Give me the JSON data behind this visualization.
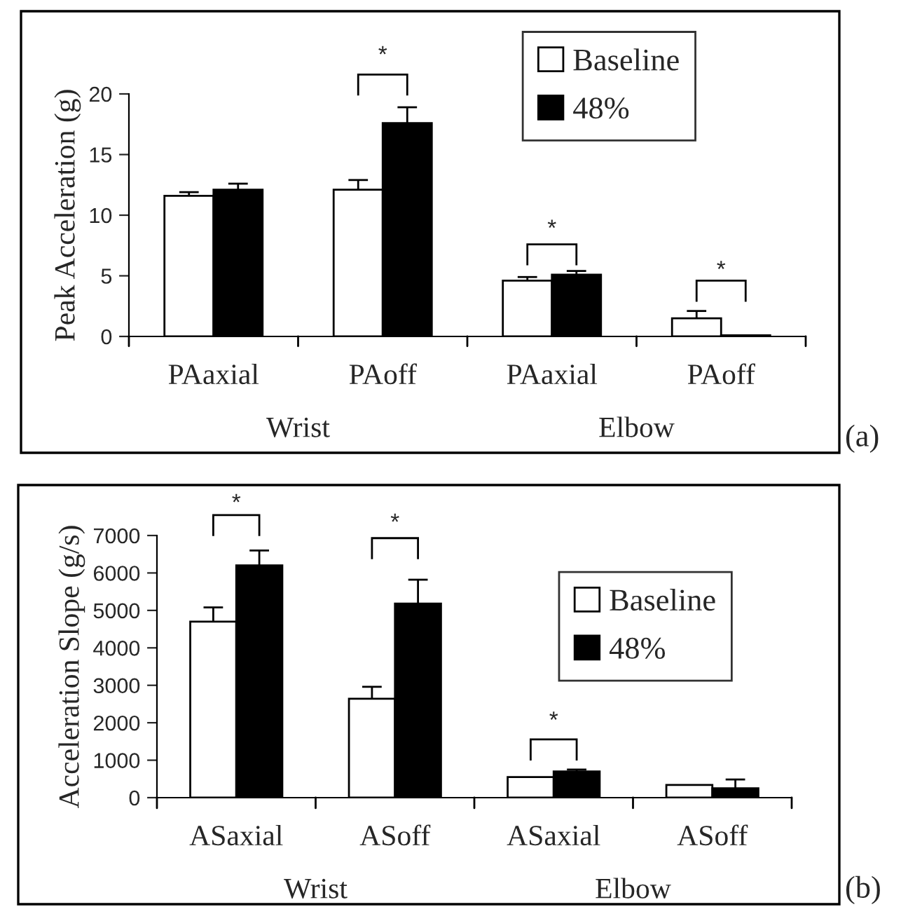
{
  "chart_data": [
    {
      "type": "bar",
      "ylabel": "Peak Acceleration (g)",
      "categories": [
        "PAaxial",
        "PAoff",
        "PAaxial",
        "PAoff"
      ],
      "series": [
        {
          "name": "Baseline",
          "color": "#ffffff",
          "values": [
            11.6,
            12.1,
            4.6,
            1.5
          ],
          "errors": [
            [
              11.6,
              11.9
            ],
            [
              12.1,
              12.9
            ],
            [
              4.6,
              4.9
            ],
            [
              1.5,
              2.1
            ]
          ]
        },
        {
          "name": "48%",
          "color": "#000000",
          "values": [
            12.1,
            17.6,
            5.1,
            0.1
          ],
          "errors": [
            [
              12.1,
              12.6
            ],
            [
              17.6,
              18.9
            ],
            [
              5.1,
              5.4
            ],
            null
          ]
        }
      ],
      "ylim": [
        0,
        20
      ],
      "yticks": [
        0,
        5,
        10,
        15,
        20
      ],
      "grid": false,
      "legend": "top right",
      "annotations": [
        "(a)",
        "Wrist",
        "Elbow",
        "*",
        "*",
        "*"
      ]
    },
    {
      "type": "bar",
      "ylabel": "Acceleration Slope (g/s)",
      "categories": [
        "ASaxial",
        "ASoff",
        "ASaxial",
        "ASoff"
      ],
      "series": [
        {
          "name": "Baseline",
          "color": "#ffffff",
          "values": [
            4700,
            2640,
            550,
            340
          ],
          "errors": [
            [
              4700,
              5080
            ],
            [
              2640,
              2960
            ],
            null,
            null
          ]
        },
        {
          "name": "48%",
          "color": "#000000",
          "values": [
            6200,
            5180,
            700,
            250
          ],
          "errors": [
            [
              6200,
              6600
            ],
            [
              5180,
              5820
            ],
            [
              700,
              750
            ],
            [
              250,
              485
            ]
          ]
        }
      ],
      "ylim": [
        0,
        7000
      ],
      "yticks": [
        0,
        1000,
        2000,
        3000,
        4000,
        5000,
        6000,
        7000
      ],
      "grid": false,
      "legend": "top right",
      "annotations": [
        "(b)",
        "Wrist",
        "Elbow",
        "*",
        "*",
        "*"
      ]
    }
  ]
}
